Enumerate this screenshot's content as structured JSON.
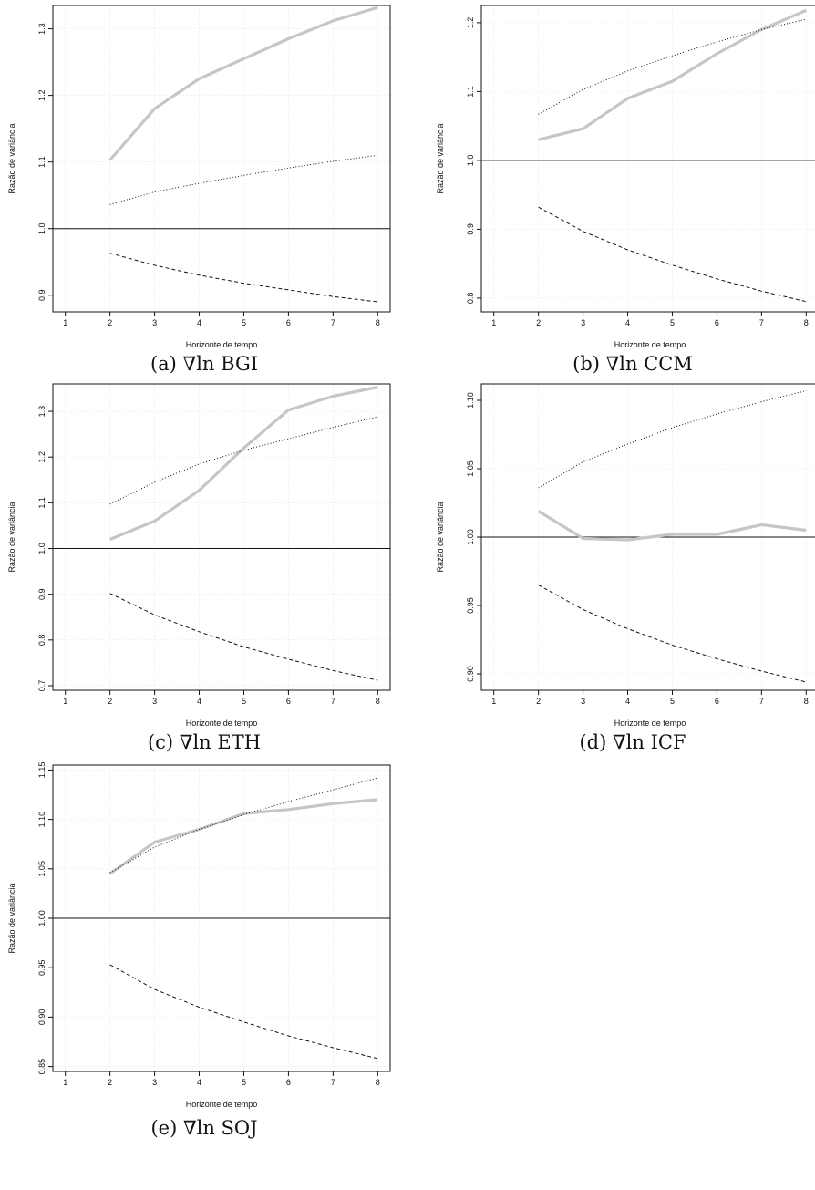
{
  "chart_data": [
    {
      "type": "line",
      "caption": "(a) ∇ln BGI",
      "xlabel": "Horizonte de tempo",
      "ylabel": "Razão de variância",
      "xlim": [
        1,
        8
      ],
      "ylim": [
        0.875,
        1.335
      ],
      "yticks": [
        0.9,
        1.0,
        1.1,
        1.2,
        1.3
      ],
      "ytick_labels": [
        "0.9",
        "1.0",
        "1.1",
        "1.2",
        "1.3"
      ],
      "xticks": [
        1,
        2,
        3,
        4,
        5,
        6,
        7,
        8
      ],
      "xtick_labels": [
        "1",
        "2",
        "3",
        "4",
        "5",
        "6",
        "7",
        "8"
      ],
      "grid": true,
      "reference_line": 1.0,
      "x": [
        2,
        3,
        4,
        5,
        6,
        7,
        8
      ],
      "series": [
        {
          "style": "thick-gray",
          "values": [
            1.103,
            1.18,
            1.225,
            1.255,
            1.285,
            1.312,
            1.332
          ]
        },
        {
          "style": "dotted",
          "values": [
            1.036,
            1.055,
            1.068,
            1.08,
            1.091,
            1.101,
            1.11
          ]
        },
        {
          "style": "dashed",
          "values": [
            0.963,
            0.945,
            0.93,
            0.918,
            0.908,
            0.898,
            0.89
          ]
        }
      ]
    },
    {
      "type": "line",
      "caption": "(b) ∇ln CCM",
      "xlabel": "Horizonte de tempo",
      "ylabel": "Razão de variância",
      "xlim": [
        1,
        8
      ],
      "ylim": [
        0.78,
        1.225
      ],
      "yticks": [
        0.8,
        0.9,
        1.0,
        1.1,
        1.2
      ],
      "ytick_labels": [
        "0.8",
        "0.9",
        "1.0",
        "1.1",
        "1.2"
      ],
      "xticks": [
        1,
        2,
        3,
        4,
        5,
        6,
        7,
        8
      ],
      "xtick_labels": [
        "1",
        "2",
        "3",
        "4",
        "5",
        "6",
        "7",
        "8"
      ],
      "grid": true,
      "reference_line": 1.0,
      "x": [
        2,
        3,
        4,
        5,
        6,
        7,
        8
      ],
      "series": [
        {
          "style": "thick-gray",
          "values": [
            1.03,
            1.046,
            1.09,
            1.115,
            1.155,
            1.19,
            1.218
          ]
        },
        {
          "style": "dotted",
          "values": [
            1.067,
            1.103,
            1.13,
            1.152,
            1.172,
            1.19,
            1.205
          ]
        },
        {
          "style": "dashed",
          "values": [
            0.932,
            0.897,
            0.87,
            0.848,
            0.828,
            0.81,
            0.795
          ]
        }
      ]
    },
    {
      "type": "line",
      "caption": "(c) ∇ln ETH",
      "xlabel": "Horizonte de tempo",
      "ylabel": "Razão de variância",
      "xlim": [
        1,
        8
      ],
      "ylim": [
        0.69,
        1.36
      ],
      "yticks": [
        0.7,
        0.8,
        0.9,
        1.0,
        1.1,
        1.2,
        1.3
      ],
      "ytick_labels": [
        "0.7",
        "0.8",
        "0.9",
        "1.0",
        "1.1",
        "1.2",
        "1.3"
      ],
      "xticks": [
        1,
        2,
        3,
        4,
        5,
        6,
        7,
        8
      ],
      "xtick_labels": [
        "1",
        "2",
        "3",
        "4",
        "5",
        "6",
        "7",
        "8"
      ],
      "grid": true,
      "reference_line": 1.0,
      "x": [
        2,
        3,
        4,
        5,
        6,
        7,
        8
      ],
      "series": [
        {
          "style": "thick-gray",
          "values": [
            1.02,
            1.06,
            1.127,
            1.22,
            1.303,
            1.333,
            1.353
          ]
        },
        {
          "style": "dotted",
          "values": [
            1.097,
            1.145,
            1.185,
            1.215,
            1.24,
            1.265,
            1.288
          ]
        },
        {
          "style": "dashed",
          "values": [
            0.902,
            0.855,
            0.818,
            0.785,
            0.758,
            0.733,
            0.712
          ]
        }
      ]
    },
    {
      "type": "line",
      "caption": "(d) ∇ln ICF",
      "xlabel": "Horizonte de tempo",
      "ylabel": "Razão de variância",
      "xlim": [
        1,
        8
      ],
      "ylim": [
        0.888,
        1.112
      ],
      "yticks": [
        0.9,
        0.95,
        1.0,
        1.05,
        1.1
      ],
      "ytick_labels": [
        "0.90",
        "0.95",
        "1.00",
        "1.05",
        "1.10"
      ],
      "xticks": [
        1,
        2,
        3,
        4,
        5,
        6,
        7,
        8
      ],
      "xtick_labels": [
        "1",
        "2",
        "3",
        "4",
        "5",
        "6",
        "7",
        "8"
      ],
      "grid": true,
      "reference_line": 1.0,
      "x": [
        2,
        3,
        4,
        5,
        6,
        7,
        8
      ],
      "series": [
        {
          "style": "thick-gray",
          "values": [
            1.019,
            0.999,
            0.998,
            1.002,
            1.002,
            1.009,
            1.005
          ]
        },
        {
          "style": "dotted",
          "values": [
            1.036,
            1.055,
            1.068,
            1.08,
            1.09,
            1.099,
            1.107
          ]
        },
        {
          "style": "dashed",
          "values": [
            0.965,
            0.947,
            0.933,
            0.921,
            0.911,
            0.902,
            0.894
          ]
        }
      ]
    },
    {
      "type": "line",
      "caption": "(e) ∇ln SOJ",
      "xlabel": "Horizonte de tempo",
      "ylabel": "Razão de variância",
      "xlim": [
        1,
        8
      ],
      "ylim": [
        0.845,
        1.155
      ],
      "yticks": [
        0.85,
        0.9,
        0.95,
        1.0,
        1.05,
        1.1,
        1.15
      ],
      "ytick_labels": [
        "0.85",
        "0.90",
        "0.95",
        "1.00",
        "1.05",
        "1.10",
        "1.15"
      ],
      "xticks": [
        1,
        2,
        3,
        4,
        5,
        6,
        7,
        8
      ],
      "xtick_labels": [
        "1",
        "2",
        "3",
        "4",
        "5",
        "6",
        "7",
        "8"
      ],
      "grid": true,
      "reference_line": 1.0,
      "x": [
        2,
        3,
        4,
        5,
        6,
        7,
        8
      ],
      "series": [
        {
          "style": "thick-gray",
          "values": [
            1.045,
            1.077,
            1.09,
            1.106,
            1.11,
            1.116,
            1.12
          ]
        },
        {
          "style": "dotted",
          "values": [
            1.046,
            1.072,
            1.09,
            1.105,
            1.118,
            1.13,
            1.142
          ]
        },
        {
          "style": "dashed",
          "values": [
            0.953,
            0.928,
            0.91,
            0.895,
            0.881,
            0.869,
            0.858
          ]
        }
      ]
    }
  ]
}
